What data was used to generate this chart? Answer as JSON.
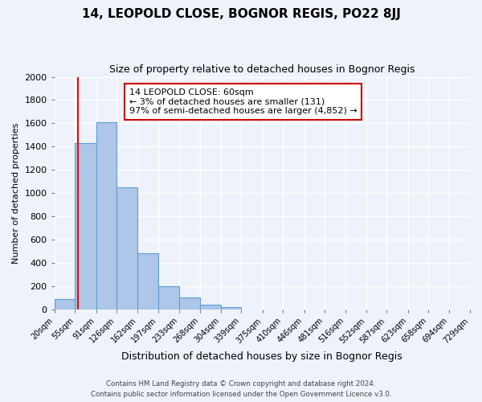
{
  "title": "14, LEOPOLD CLOSE, BOGNOR REGIS, PO22 8JJ",
  "subtitle": "Size of property relative to detached houses in Bognor Regis",
  "xlabel": "Distribution of detached houses by size in Bognor Regis",
  "ylabel": "Number of detached properties",
  "footnote1": "Contains HM Land Registry data © Crown copyright and database right 2024.",
  "footnote2": "Contains public sector information licensed under the Open Government Licence v3.0.",
  "bin_labels": [
    "20sqm",
    "55sqm",
    "91sqm",
    "126sqm",
    "162sqm",
    "197sqm",
    "233sqm",
    "268sqm",
    "304sqm",
    "339sqm",
    "375sqm",
    "410sqm",
    "446sqm",
    "481sqm",
    "516sqm",
    "552sqm",
    "587sqm",
    "623sqm",
    "658sqm",
    "694sqm",
    "729sqm"
  ],
  "bin_edges": [
    20,
    55,
    91,
    126,
    162,
    197,
    233,
    268,
    304,
    339,
    375,
    410,
    446,
    481,
    516,
    552,
    587,
    623,
    658,
    694,
    729
  ],
  "bar_values": [
    85,
    1430,
    1610,
    1050,
    480,
    200,
    100,
    40,
    15,
    0,
    0,
    0,
    0,
    0,
    0,
    0,
    0,
    0,
    0,
    0
  ],
  "bar_color": "#aec6e8",
  "bar_edge_color": "#5a9fd4",
  "ylim": [
    0,
    2000
  ],
  "yticks": [
    0,
    200,
    400,
    600,
    800,
    1000,
    1200,
    1400,
    1600,
    1800,
    2000
  ],
  "red_line_x": 60,
  "annotation_title": "14 LEOPOLD CLOSE: 60sqm",
  "annotation_line1": "← 3% of detached houses are smaller (131)",
  "annotation_line2": "97% of semi-detached houses are larger (4,852) →",
  "annotation_box_color": "#ffffff",
  "annotation_box_edge": "#cc0000",
  "background_color": "#eef2fb"
}
